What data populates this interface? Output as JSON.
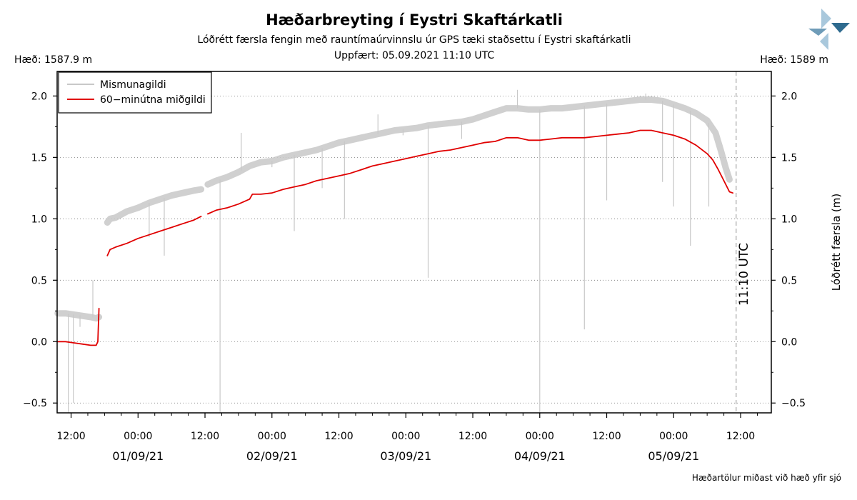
{
  "header": {
    "title": "Hæðarbreyting í Eystri Skaftárkatli",
    "subtitle": "Lóðrétt færsla fengin með rauntímaúrvinnslu úr GPS tæki staðsettu í Eystri skaftárkatli",
    "updated": "Uppfært: 05.09.2021 11:10 UTC",
    "height_left": "Hæð: 1587.9 m",
    "height_right": "Hæð: 1589 m",
    "footnote": "Hæðartölur miðast við hæð yfir sjó"
  },
  "colors": {
    "raw": "#c8c8c8",
    "median": "#e00000",
    "marker": "#aaaaaa",
    "logo_light": "#a9c8dc",
    "logo_dark": "#2f6b8f"
  },
  "chart_data": {
    "type": "line",
    "y_label_right": "Lóðrétt færsla (m)",
    "ylim": [
      -0.58,
      2.2
    ],
    "y_ticks": [
      -0.5,
      0.0,
      0.5,
      1.0,
      1.5,
      2.0
    ],
    "y_tick_labels": [
      "−0.5",
      "0.0",
      "0.5",
      "1.0",
      "1.5",
      "2.0"
    ],
    "x_unit": "hours since 31.08.2021 00:00 UTC",
    "xlim": [
      9.5,
      137.5
    ],
    "x_ticks": [
      12,
      24,
      36,
      48,
      60,
      72,
      84,
      96,
      108,
      120,
      132
    ],
    "x_tick_labels": [
      "12:00",
      "00:00",
      "12:00",
      "00:00",
      "12:00",
      "00:00",
      "12:00",
      "00:00",
      "12:00",
      "00:00",
      "12:00"
    ],
    "date_labels": [
      {
        "x": 24,
        "label": "01/09/21"
      },
      {
        "x": 48,
        "label": "02/09/21"
      },
      {
        "x": 72,
        "label": "03/09/21"
      },
      {
        "x": 96,
        "label": "04/09/21"
      },
      {
        "x": 120,
        "label": "05/09/21"
      }
    ],
    "marker": {
      "x": 131.2,
      "label": "11:10 UTC"
    },
    "legend": {
      "position": "top-left",
      "entries": [
        "Mismunagildi",
        "60−minútna miðgildi"
      ]
    },
    "grid": "horizontal dotted",
    "series": [
      {
        "name": "Mismunagildi",
        "segments": [
          [
            [
              9.6,
              0.23
            ],
            [
              11,
              0.23
            ],
            [
              12.5,
              0.22
            ],
            [
              14,
              0.21
            ],
            [
              15.5,
              0.2
            ],
            [
              16.5,
              0.19
            ],
            [
              17,
              0.2
            ]
          ],
          [
            [
              18.5,
              0.97
            ],
            [
              19,
              1.0
            ],
            [
              20,
              1.01
            ],
            [
              22,
              1.06
            ],
            [
              24,
              1.09
            ],
            [
              26,
              1.13
            ],
            [
              28,
              1.16
            ],
            [
              30,
              1.19
            ],
            [
              32,
              1.21
            ],
            [
              34,
              1.23
            ],
            [
              35.3,
              1.24
            ]
          ],
          [
            [
              36.5,
              1.28
            ],
            [
              38,
              1.31
            ],
            [
              40,
              1.34
            ],
            [
              42,
              1.38
            ],
            [
              44,
              1.43
            ],
            [
              46,
              1.46
            ],
            [
              48,
              1.47
            ],
            [
              50,
              1.5
            ],
            [
              52,
              1.52
            ],
            [
              54,
              1.54
            ],
            [
              56,
              1.56
            ],
            [
              58,
              1.59
            ],
            [
              60,
              1.62
            ],
            [
              62,
              1.64
            ],
            [
              64,
              1.66
            ],
            [
              66,
              1.68
            ],
            [
              68,
              1.7
            ],
            [
              70,
              1.72
            ],
            [
              72,
              1.73
            ],
            [
              74,
              1.74
            ],
            [
              76,
              1.76
            ],
            [
              78,
              1.77
            ],
            [
              80,
              1.78
            ],
            [
              82,
              1.79
            ],
            [
              84,
              1.81
            ],
            [
              86,
              1.84
            ],
            [
              88,
              1.87
            ],
            [
              90,
              1.9
            ],
            [
              92,
              1.9
            ],
            [
              94,
              1.89
            ],
            [
              96,
              1.89
            ],
            [
              98,
              1.9
            ],
            [
              100,
              1.9
            ],
            [
              102,
              1.91
            ],
            [
              104,
              1.92
            ],
            [
              106,
              1.93
            ],
            [
              108,
              1.94
            ],
            [
              110,
              1.95
            ],
            [
              112,
              1.96
            ],
            [
              114,
              1.97
            ],
            [
              116,
              1.97
            ],
            [
              118,
              1.96
            ],
            [
              120,
              1.93
            ],
            [
              122,
              1.9
            ],
            [
              124,
              1.86
            ],
            [
              126,
              1.8
            ],
            [
              127.5,
              1.7
            ],
            [
              128.5,
              1.55
            ],
            [
              129.3,
              1.42
            ],
            [
              130,
              1.32
            ]
          ]
        ]
      },
      {
        "name": "60−minútna miðgildi",
        "segments": [
          [
            [
              9.6,
              0.0
            ],
            [
              11,
              0.0
            ],
            [
              12.5,
              -0.01
            ],
            [
              14,
              -0.02
            ],
            [
              15.5,
              -0.03
            ],
            [
              16.5,
              -0.03
            ],
            [
              16.8,
              0.0
            ],
            [
              17,
              0.27
            ]
          ],
          [
            [
              18.5,
              0.7
            ],
            [
              19,
              0.75
            ],
            [
              20,
              0.77
            ],
            [
              22,
              0.8
            ],
            [
              24,
              0.84
            ],
            [
              26,
              0.87
            ],
            [
              28,
              0.9
            ],
            [
              30,
              0.93
            ],
            [
              32,
              0.96
            ],
            [
              34,
              0.99
            ],
            [
              35.3,
              1.02
            ]
          ],
          [
            [
              36.5,
              1.04
            ],
            [
              38,
              1.07
            ],
            [
              40,
              1.09
            ],
            [
              42,
              1.12
            ],
            [
              44,
              1.16
            ],
            [
              44.5,
              1.2
            ],
            [
              46,
              1.2
            ],
            [
              48,
              1.21
            ],
            [
              50,
              1.24
            ],
            [
              52,
              1.26
            ],
            [
              54,
              1.28
            ],
            [
              56,
              1.31
            ],
            [
              58,
              1.33
            ],
            [
              60,
              1.35
            ],
            [
              62,
              1.37
            ],
            [
              64,
              1.4
            ],
            [
              66,
              1.43
            ],
            [
              68,
              1.45
            ],
            [
              70,
              1.47
            ],
            [
              72,
              1.49
            ],
            [
              74,
              1.51
            ],
            [
              76,
              1.53
            ],
            [
              78,
              1.55
            ],
            [
              80,
              1.56
            ],
            [
              82,
              1.58
            ],
            [
              84,
              1.6
            ],
            [
              86,
              1.62
            ],
            [
              88,
              1.63
            ],
            [
              90,
              1.66
            ],
            [
              92,
              1.66
            ],
            [
              94,
              1.64
            ],
            [
              96,
              1.64
            ],
            [
              98,
              1.65
            ],
            [
              100,
              1.66
            ],
            [
              102,
              1.66
            ],
            [
              104,
              1.66
            ],
            [
              106,
              1.67
            ],
            [
              108,
              1.68
            ],
            [
              110,
              1.69
            ],
            [
              112,
              1.7
            ],
            [
              114,
              1.72
            ],
            [
              116,
              1.72
            ],
            [
              118,
              1.7
            ],
            [
              120,
              1.68
            ],
            [
              122,
              1.65
            ],
            [
              124,
              1.6
            ],
            [
              126,
              1.53
            ],
            [
              127,
              1.48
            ],
            [
              128,
              1.4
            ],
            [
              129,
              1.31
            ],
            [
              130,
              1.22
            ],
            [
              130.6,
              1.21
            ]
          ]
        ]
      }
    ],
    "spikes": [
      [
        11.5,
        -0.58
      ],
      [
        12.4,
        -0.5
      ],
      [
        13.6,
        0.12
      ],
      [
        15.9,
        0.5
      ],
      [
        26,
        0.85
      ],
      [
        28.7,
        0.7
      ],
      [
        36,
        -0.58
      ],
      [
        38.7,
        -0.58
      ],
      [
        42.5,
        1.7
      ],
      [
        48,
        1.42
      ],
      [
        52,
        0.9
      ],
      [
        57,
        1.25
      ],
      [
        61,
        1.0
      ],
      [
        67,
        1.85
      ],
      [
        71.5,
        1.68
      ],
      [
        76,
        0.52
      ],
      [
        82,
        1.65
      ],
      [
        92,
        2.05
      ],
      [
        96,
        -0.58
      ],
      [
        104,
        0.1
      ],
      [
        108,
        1.15
      ],
      [
        115,
        2.02
      ],
      [
        118,
        1.3
      ],
      [
        120,
        1.1
      ],
      [
        123,
        0.78
      ],
      [
        126.3,
        1.1
      ]
    ]
  }
}
